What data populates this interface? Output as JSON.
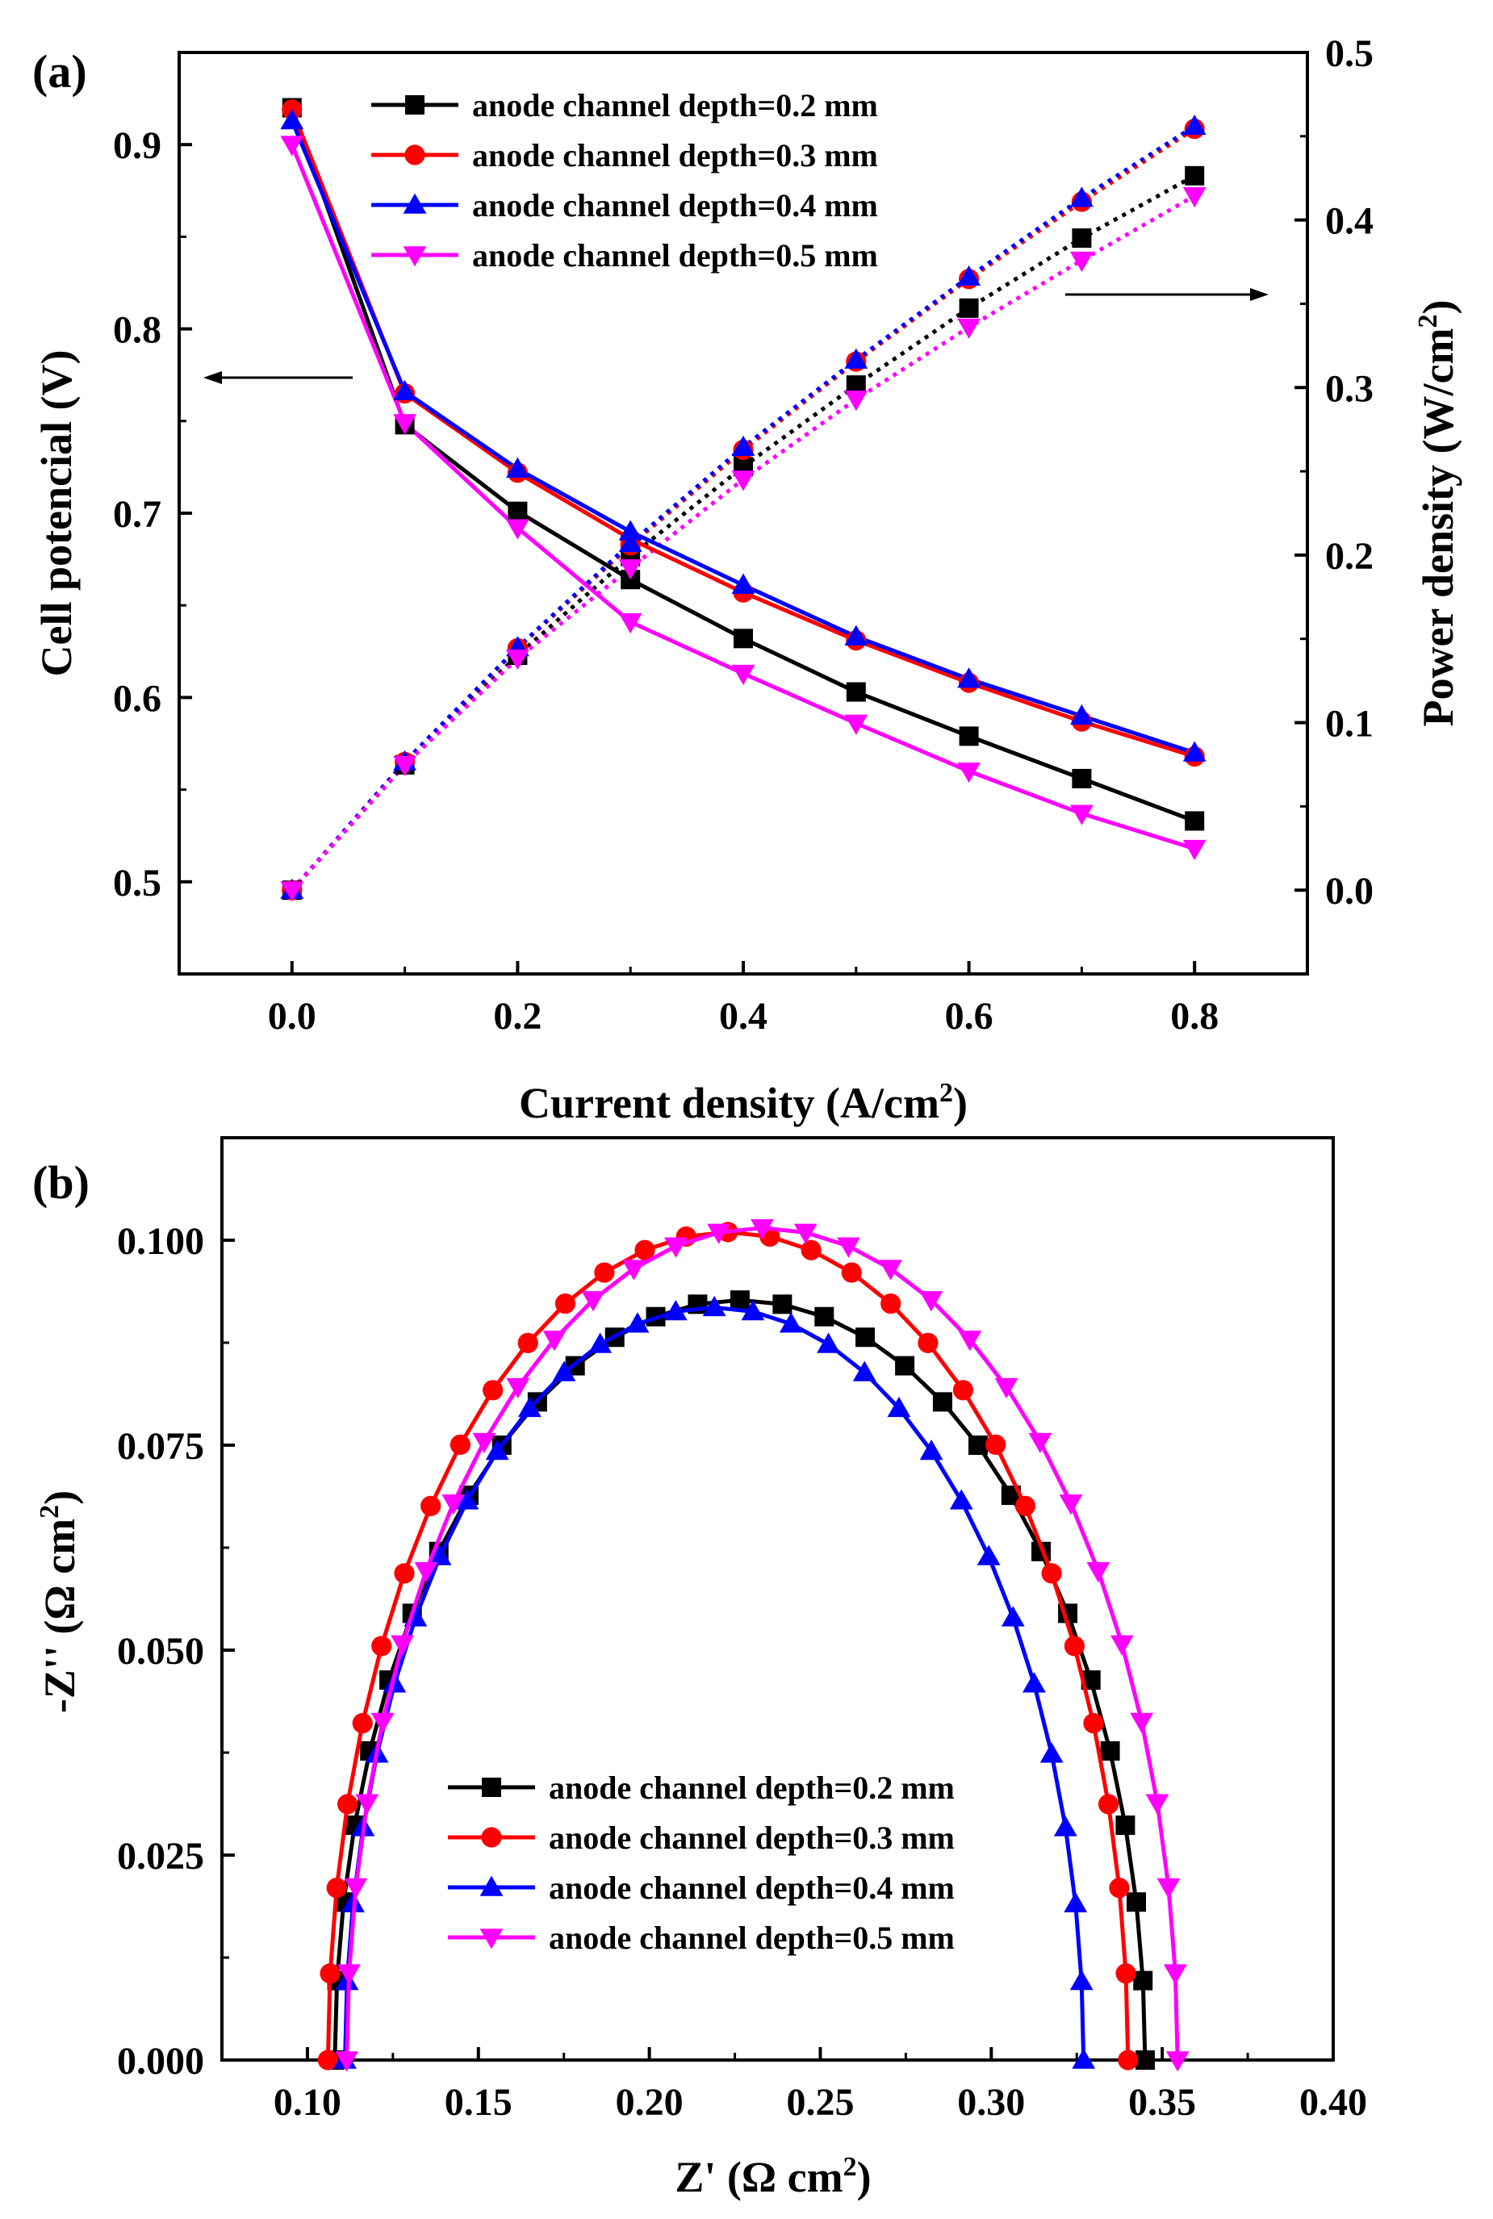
{
  "chart_data": [
    {
      "type": "line",
      "panel_label": "(a)",
      "x": [
        0.0,
        0.1,
        0.2,
        0.3,
        0.4,
        0.5,
        0.6,
        0.7,
        0.8
      ],
      "xlabel": "Current density (A/cm",
      "xlabel_sup": "2",
      "xlabel_end": ")",
      "ylabel": "Cell potencial (V)",
      "y2label": "Power density (W/cm",
      "y2label_sup": "2",
      "y2label_end": ")",
      "xlim": [
        -0.1,
        0.9
      ],
      "ylim": [
        0.45,
        0.95
      ],
      "y2lim": [
        -0.05,
        0.5
      ],
      "xticks": [
        "0.0",
        "0.2",
        "0.4",
        "0.6",
        "0.8"
      ],
      "yticks": [
        "0.5",
        "0.6",
        "0.7",
        "0.8",
        "0.9"
      ],
      "y2ticks": [
        "0.0",
        "0.1",
        "0.2",
        "0.3",
        "0.4",
        "0.5"
      ],
      "legend_location": "top-center",
      "series": [
        {
          "name": "anode channel depth=0.2 mm",
          "color": "#000000",
          "marker": "square",
          "voltage": [
            0.92,
            0.748,
            0.701,
            0.664,
            0.632,
            0.603,
            0.579,
            0.556,
            0.533
          ],
          "power": [
            0.0,
            0.0748,
            0.1402,
            0.1992,
            0.2528,
            0.3015,
            0.3474,
            0.3892,
            0.4264
          ]
        },
        {
          "name": "anode channel depth=0.3 mm",
          "color": "#ff0000",
          "marker": "circle",
          "voltage": [
            0.919,
            0.765,
            0.722,
            0.686,
            0.657,
            0.631,
            0.608,
            0.587,
            0.568
          ],
          "power": [
            0.0,
            0.0765,
            0.1444,
            0.2058,
            0.2628,
            0.3155,
            0.3648,
            0.4109,
            0.4544
          ]
        },
        {
          "name": "anode channel depth=0.4 mm",
          "color": "#0000ff",
          "marker": "triangle-up",
          "voltage": [
            0.913,
            0.766,
            0.724,
            0.69,
            0.661,
            0.633,
            0.61,
            0.59,
            0.57
          ],
          "power": [
            0.0,
            0.0766,
            0.1448,
            0.207,
            0.2644,
            0.3165,
            0.366,
            0.413,
            0.456
          ]
        },
        {
          "name": "anode channel depth=0.5 mm",
          "color": "#ff00ff",
          "marker": "triangle-down",
          "voltage": [
            0.9,
            0.749,
            0.692,
            0.641,
            0.613,
            0.586,
            0.56,
            0.537,
            0.518
          ],
          "power": [
            0.0,
            0.0749,
            0.1384,
            0.1923,
            0.2452,
            0.293,
            0.336,
            0.3759,
            0.4144
          ]
        }
      ]
    },
    {
      "type": "line",
      "panel_label": "(b)",
      "xlabel": "Z' (Ω cm",
      "xlabel_sup": "2",
      "xlabel_end": ")",
      "ylabel": "-Z'' (Ω cm",
      "ylabel_sup": "2",
      "ylabel_end": ")",
      "xlim": [
        0.075,
        0.4
      ],
      "ylim": [
        0.0,
        0.1125
      ],
      "xticks": [
        "0.10",
        "0.15",
        "0.20",
        "0.25",
        "0.30",
        "0.35",
        "0.40"
      ],
      "yticks": [
        "0.000",
        "0.025",
        "0.050",
        "0.075",
        "0.100"
      ],
      "legend_location": "bottom-center",
      "series": [
        {
          "name": "anode channel depth=0.2 mm",
          "color": "#000000",
          "marker": "square",
          "center": 0.2265,
          "radius": 0.1185,
          "height": 0.0927
        },
        {
          "name": "anode channel depth=0.3 mm",
          "color": "#ff0000",
          "marker": "circle",
          "center": 0.223,
          "radius": 0.117,
          "height": 0.101
        },
        {
          "name": "anode channel depth=0.4 mm",
          "color": "#0000ff",
          "marker": "triangle-up",
          "center": 0.219,
          "radius": 0.108,
          "height": 0.0918
        },
        {
          "name": "anode channel depth=0.5 mm",
          "color": "#ff00ff",
          "marker": "triangle-down",
          "center": 0.233,
          "radius": 0.1215,
          "height": 0.1015
        }
      ]
    }
  ]
}
